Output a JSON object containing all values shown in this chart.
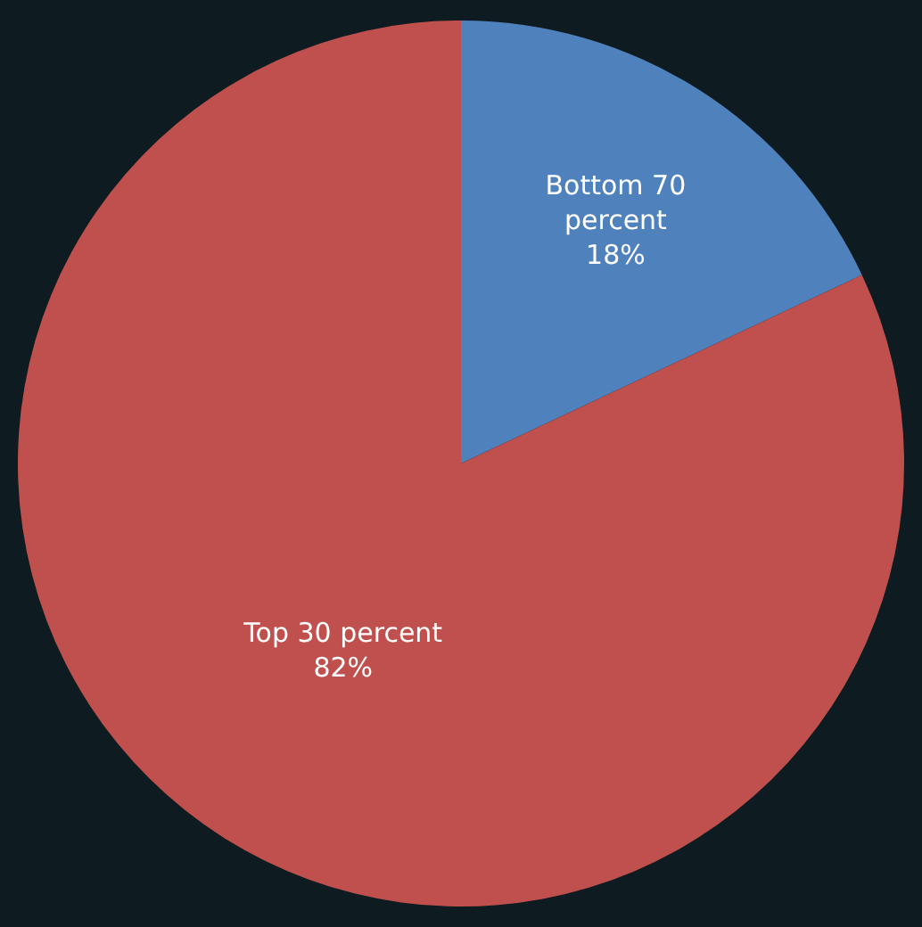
{
  "chart_data": {
    "type": "pie",
    "categories": [
      "Bottom 70 percent",
      "Top 30 percent"
    ],
    "values": [
      18,
      82
    ],
    "value_labels": [
      "18%",
      "82%"
    ],
    "colors": [
      "#4f81bd",
      "#c0504d"
    ],
    "legend": false
  }
}
